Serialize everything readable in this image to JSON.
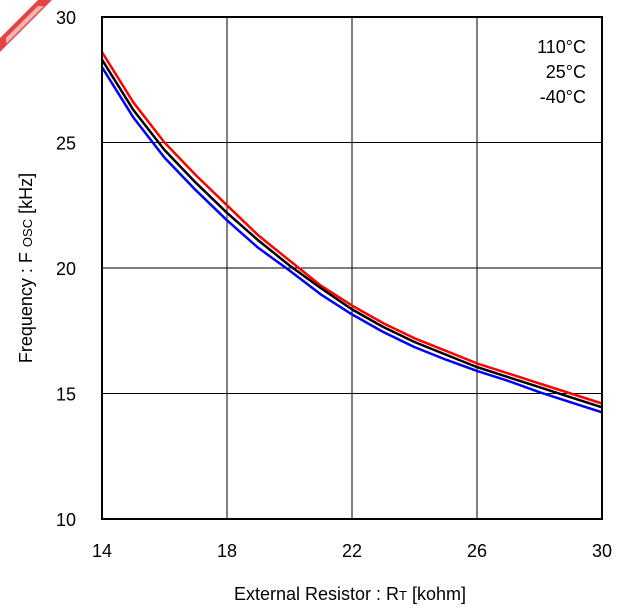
{
  "chart_data": {
    "type": "line",
    "title": "",
    "xlabel": {
      "main": "External Resistor : R",
      "sub": "T",
      "unit": " [kohm]"
    },
    "ylabel": {
      "main": "Frequency : F ",
      "sub": "OSC",
      "unit": " [kHz]"
    },
    "xlim": [
      14,
      30
    ],
    "ylim": [
      10,
      30
    ],
    "xticks": [
      14,
      18,
      22,
      26,
      30
    ],
    "yticks": [
      10,
      15,
      20,
      25,
      30
    ],
    "grid": true,
    "legend_position": "top-right",
    "legend_entries": [
      "110°C",
      "25°C",
      "-40°C"
    ],
    "series": [
      {
        "color": "#ff0000",
        "x": [
          14,
          15,
          16,
          17,
          18,
          19,
          20,
          21,
          22,
          23,
          24,
          25,
          26,
          27,
          28,
          29,
          30
        ],
        "y": [
          28.6,
          26.6,
          25.0,
          23.7,
          22.5,
          21.3,
          20.3,
          19.3,
          18.5,
          17.8,
          17.2,
          16.7,
          16.2,
          15.8,
          15.4,
          15.0,
          14.6
        ]
      },
      {
        "color": "#000000",
        "x": [
          14,
          15,
          16,
          17,
          18,
          19,
          20,
          21,
          22,
          23,
          24,
          25,
          26,
          27,
          28,
          29,
          30
        ],
        "y": [
          28.3,
          26.3,
          24.7,
          23.4,
          22.2,
          21.1,
          20.1,
          19.2,
          18.35,
          17.65,
          17.05,
          16.55,
          16.05,
          15.65,
          15.25,
          14.85,
          14.45
        ]
      },
      {
        "color": "#0000ff",
        "x": [
          14,
          15,
          16,
          17,
          18,
          19,
          20,
          21,
          22,
          23,
          24,
          25,
          26,
          27,
          28,
          29,
          30
        ],
        "y": [
          28.0,
          26.0,
          24.4,
          23.1,
          21.9,
          20.8,
          19.9,
          18.95,
          18.15,
          17.45,
          16.85,
          16.35,
          15.9,
          15.5,
          15.05,
          14.65,
          14.25
        ]
      }
    ]
  }
}
